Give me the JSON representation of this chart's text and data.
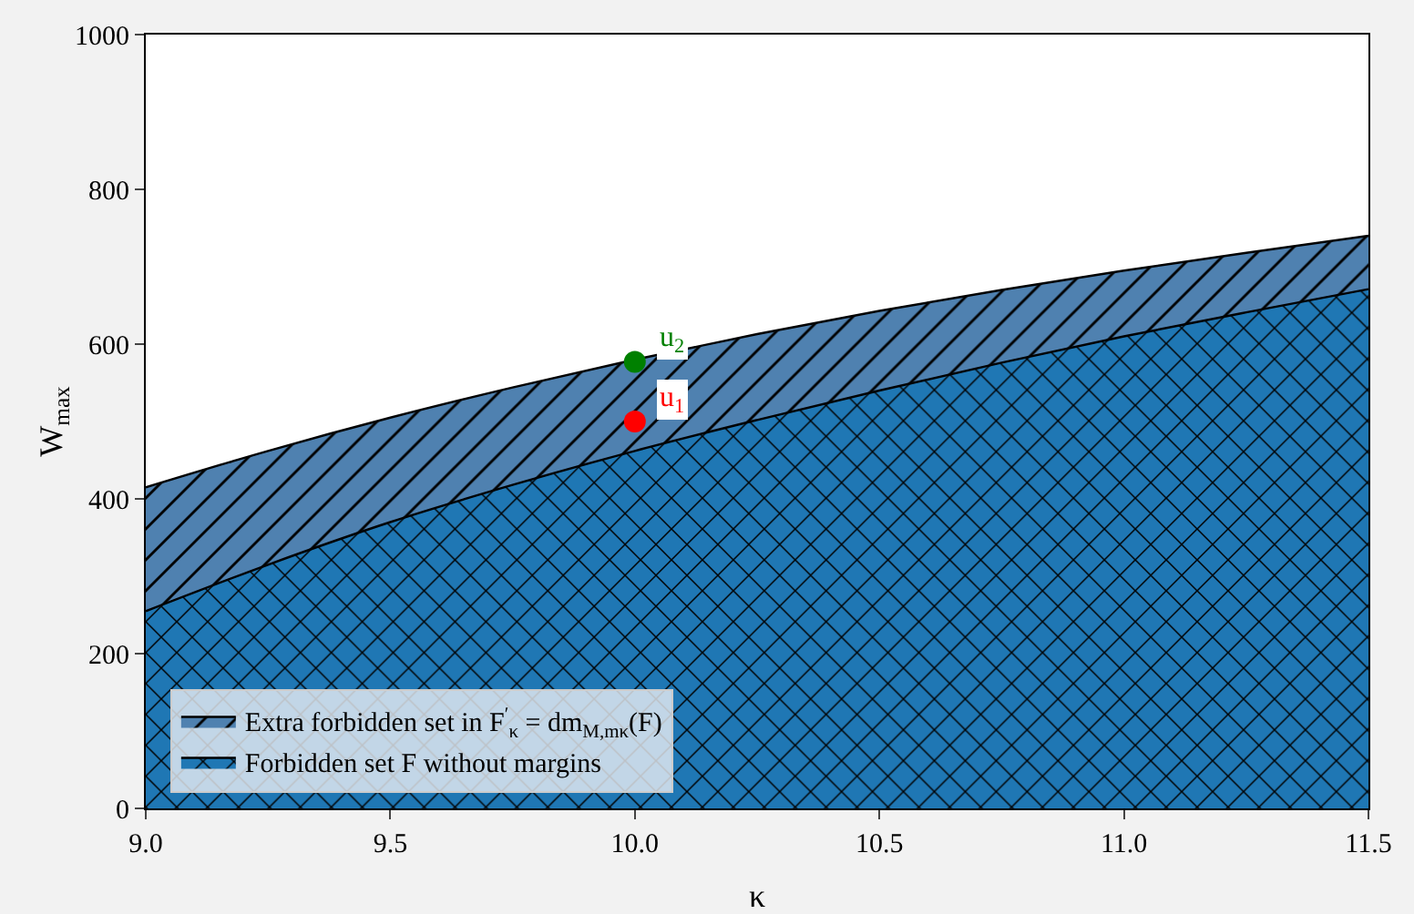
{
  "chart_data": {
    "type": "area",
    "xlabel": "κ",
    "ylabel": "W$_{max}$",
    "x": [
      9.0,
      9.25,
      9.5,
      9.75,
      10.0,
      10.25,
      10.5,
      10.75,
      11.0,
      11.25,
      11.5
    ],
    "series": [
      {
        "name": "Extra forbidden set in F$^{′}$$_{κ}$ = dm$_{M,mκ}$(F)",
        "color": "#4f81b0",
        "values": [
          415,
          462,
          505,
          544,
          580,
          613,
          643,
          670,
          695,
          718,
          740
        ]
      },
      {
        "name": "Forbidden set F without margins",
        "color": "#1f77b4",
        "values": [
          255,
          315,
          370,
          418,
          462,
          502,
          540,
          576,
          610,
          641,
          671
        ]
      },
      {
        "name": "u$_{1}$",
        "type": "scatter",
        "color": "#ff0000",
        "x": [
          10.0
        ],
        "values": [
          500
        ]
      },
      {
        "name": "u$_{2}$",
        "type": "scatter",
        "color": "#008000",
        "x": [
          10.0
        ],
        "values": [
          577
        ]
      }
    ],
    "xlim": [
      9.0,
      11.5
    ],
    "ylim": [
      0,
      1000
    ],
    "xticks": [
      {
        "value": 9.0,
        "label": "9.0"
      },
      9.5,
      {
        "value": 10.0,
        "label": "10.0"
      },
      10.5,
      {
        "value": 11.0,
        "label": "11.0"
      },
      11.5
    ],
    "yticks": [
      0,
      200,
      400,
      600,
      800,
      1000
    ],
    "grid": false,
    "legend": "bottom left"
  }
}
